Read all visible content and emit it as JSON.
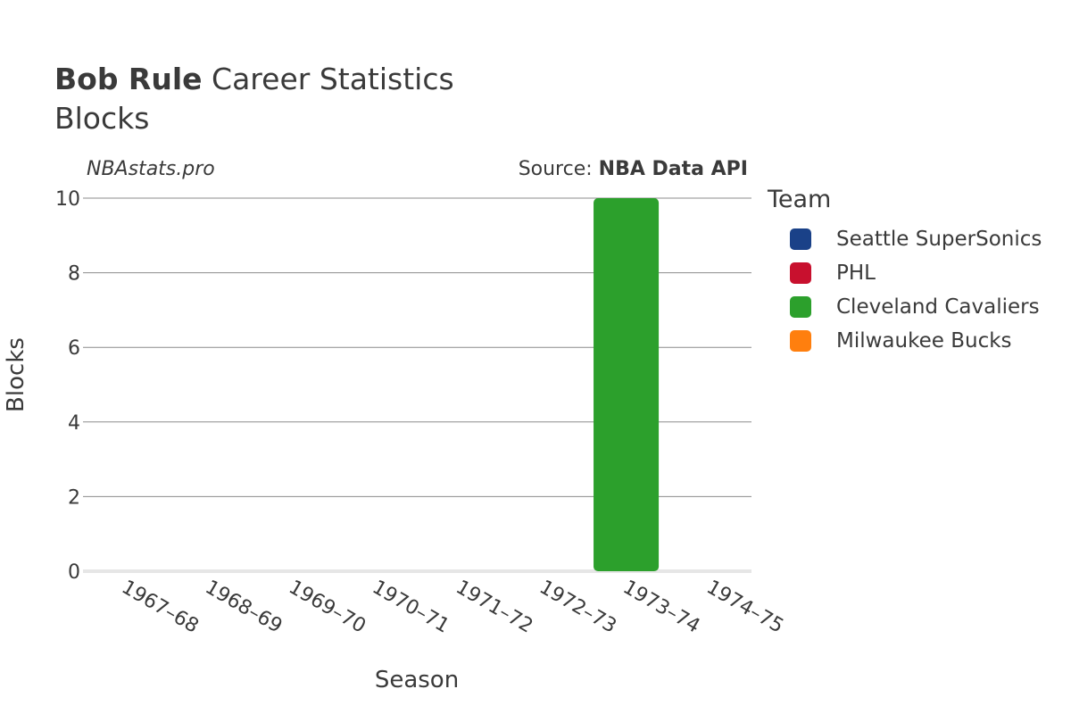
{
  "header": {
    "player_name": "Bob Rule",
    "title_rest": "Career Statistics",
    "subtitle": "Blocks",
    "site": "NBAstats.pro",
    "source_prefix": "Source: ",
    "source_name": "NBA Data API"
  },
  "legend": {
    "title": "Team",
    "items": [
      {
        "label": "Seattle SuperSonics",
        "color": "#1a4188"
      },
      {
        "label": "PHL",
        "color": "#c8102e"
      },
      {
        "label": "Cleveland Cavaliers",
        "color": "#2ca02c"
      },
      {
        "label": "Milwaukee Bucks",
        "color": "#ff7f0e"
      }
    ]
  },
  "chart_data": {
    "type": "bar",
    "xlabel": "Season",
    "ylabel": "Blocks",
    "categories": [
      "1967–68",
      "1968–69",
      "1969–70",
      "1970–71",
      "1971–72",
      "1972–73",
      "1973–74",
      "1974–75"
    ],
    "ylim": [
      0,
      10
    ],
    "yticks": [
      0,
      2,
      4,
      6,
      8,
      10
    ],
    "grid": true,
    "legend_position": "right",
    "series": [
      {
        "name": "Seattle SuperSonics",
        "color": "#1a4188",
        "values": [
          0,
          0,
          0,
          0,
          0,
          0,
          0,
          0
        ]
      },
      {
        "name": "PHL",
        "color": "#c8102e",
        "values": [
          0,
          0,
          0,
          0,
          0,
          0,
          0,
          0
        ]
      },
      {
        "name": "Cleveland Cavaliers",
        "color": "#2ca02c",
        "values": [
          0,
          0,
          0,
          0,
          0,
          0,
          10,
          0
        ]
      },
      {
        "name": "Milwaukee Bucks",
        "color": "#ff7f0e",
        "values": [
          0,
          0,
          0,
          0,
          0,
          0,
          0,
          0
        ]
      }
    ]
  }
}
